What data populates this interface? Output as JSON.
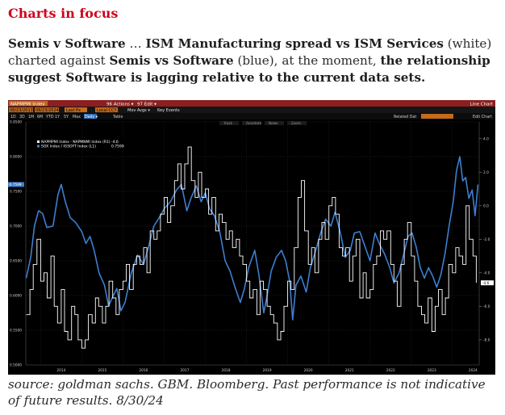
{
  "heading": "Charts in focus",
  "intro": {
    "p1_bold": "Semis v Software",
    "p2": " … ",
    "p3_bold": "ISM Manufacturing spread vs ISM Services",
    "p4": " (white) charted against ",
    "p5_bold": "Semis vs Software",
    "p6": " (blue), at the moment, ",
    "p7_bold": "the relationship suggest Software is lagging relative to the current data sets."
  },
  "terminal": {
    "ticker": "NAPMPMI Index",
    "actions_menu": "96 Actions ▾",
    "edit_menu": "97 Edit ▾",
    "chart_type": "Line Chart",
    "start_date": "08/23/2013",
    "end_date": "08/23/2024",
    "period": "Last Px",
    "currency": "Local CCY",
    "mov_avgs": "Mov Avgs ▾",
    "key_events": "Key Events",
    "ranges": [
      "1D",
      "3D",
      "1M",
      "6M",
      "YTD",
      "1Y",
      "5Y",
      "Max"
    ],
    "frequency": "Daily ▾",
    "table_btn": "Table",
    "related_dat": "Related Dat",
    "edit_chart": "Edit Chart",
    "tools": [
      "Track",
      "Annotate",
      "News",
      "Zoom"
    ]
  },
  "chart_data": {
    "type": "line",
    "colors": {
      "ism_spread": "#ffffff",
      "semis_vs_software": "#3d7fd0",
      "background": "#000000",
      "grid": "#262626"
    },
    "legend": {
      "position": "top-left",
      "entries": [
        {
          "name": "NAPMPMI Index - NAPMNMI Index (R1)",
          "last": "-4.6"
        },
        {
          "name": "SOX Index / IGSOFT Index (L1)",
          "last": "0.7599"
        }
      ]
    },
    "x_ticks": [
      "2014",
      "2015",
      "2016",
      "2017",
      "2018",
      "2019",
      "2020",
      "2021",
      "2022",
      "2023",
      "2024"
    ],
    "x_range": [
      2013.64,
      2024.65
    ],
    "left_axis": {
      "ticks": [
        "0.8500",
        "0.8000",
        "0.7500",
        "0.7000",
        "0.6500",
        "0.6000",
        "0.5500",
        "0.5000"
      ],
      "range": [
        0.5,
        0.85
      ]
    },
    "right_axis": {
      "ticks": [
        "4.0",
        "2.0",
        "0.0",
        "-2.0",
        "-4.0",
        "-6.0",
        "-8.0"
      ],
      "range": [
        -9.5,
        5.0
      ]
    },
    "last_labels": {
      "left": "0.7599",
      "right": "-4.6"
    },
    "ism_spread_series": [
      [
        2013.65,
        -6.5
      ],
      [
        2013.74,
        -5.0
      ],
      [
        2013.82,
        -3.5
      ],
      [
        2013.91,
        -2.0
      ],
      [
        2014.0,
        -4.5
      ],
      [
        2014.08,
        -4.0
      ],
      [
        2014.16,
        -5.5
      ],
      [
        2014.25,
        -3.0
      ],
      [
        2014.33,
        -6.0
      ],
      [
        2014.41,
        -7.0
      ],
      [
        2014.5,
        -5.0
      ],
      [
        2014.58,
        -7.5
      ],
      [
        2014.66,
        -8.0
      ],
      [
        2014.75,
        -6.0
      ],
      [
        2014.83,
        -6.5
      ],
      [
        2014.91,
        -8.0
      ],
      [
        2015.0,
        -8.5
      ],
      [
        2015.08,
        -8.0
      ],
      [
        2015.16,
        -6.5
      ],
      [
        2015.25,
        -7.0
      ],
      [
        2015.33,
        -5.5
      ],
      [
        2015.41,
        -6.0
      ],
      [
        2015.5,
        -7.0
      ],
      [
        2015.58,
        -6.0
      ],
      [
        2015.66,
        -4.5
      ],
      [
        2015.75,
        -5.5
      ],
      [
        2015.83,
        -6.5
      ],
      [
        2015.91,
        -5.0
      ],
      [
        2016.0,
        -4.5
      ],
      [
        2016.08,
        -3.5
      ],
      [
        2016.16,
        -5.0
      ],
      [
        2016.25,
        -3.5
      ],
      [
        2016.33,
        -3.0
      ],
      [
        2016.41,
        -3.5
      ],
      [
        2016.5,
        -2.5
      ],
      [
        2016.58,
        -4.0
      ],
      [
        2016.66,
        -1.5
      ],
      [
        2016.75,
        -2.0
      ],
      [
        2016.83,
        -1.5
      ],
      [
        2016.91,
        -0.5
      ],
      [
        2017.0,
        0.5
      ],
      [
        2017.08,
        -1.0
      ],
      [
        2017.16,
        0.0
      ],
      [
        2017.25,
        1.5
      ],
      [
        2017.33,
        2.5
      ],
      [
        2017.41,
        1.0
      ],
      [
        2017.5,
        2.5
      ],
      [
        2017.58,
        3.5
      ],
      [
        2017.66,
        1.5
      ],
      [
        2017.75,
        0.5
      ],
      [
        2017.83,
        2.0
      ],
      [
        2017.91,
        0.5
      ],
      [
        2018.0,
        1.0
      ],
      [
        2018.08,
        -0.5
      ],
      [
        2018.16,
        0.5
      ],
      [
        2018.25,
        -1.5
      ],
      [
        2018.33,
        -0.5
      ],
      [
        2018.41,
        -1.0
      ],
      [
        2018.5,
        -2.0
      ],
      [
        2018.58,
        -1.5
      ],
      [
        2018.66,
        -2.5
      ],
      [
        2018.75,
        -2.0
      ],
      [
        2018.83,
        -3.0
      ],
      [
        2018.91,
        -3.5
      ],
      [
        2019.0,
        -4.5
      ],
      [
        2019.08,
        -5.5
      ],
      [
        2019.16,
        -5.0
      ],
      [
        2019.25,
        -6.5
      ],
      [
        2019.33,
        -4.5
      ],
      [
        2019.41,
        -5.0
      ],
      [
        2019.5,
        -6.0
      ],
      [
        2019.58,
        -6.5
      ],
      [
        2019.66,
        -7.0
      ],
      [
        2019.75,
        -8.0
      ],
      [
        2019.83,
        -7.5
      ],
      [
        2019.91,
        -6.0
      ],
      [
        2020.0,
        -4.5
      ],
      [
        2020.08,
        -5.0
      ],
      [
        2020.16,
        -2.5
      ],
      [
        2020.25,
        0.5
      ],
      [
        2020.33,
        1.5
      ],
      [
        2020.41,
        -1.5
      ],
      [
        2020.5,
        -3.5
      ],
      [
        2020.58,
        -2.5
      ],
      [
        2020.66,
        -4.0
      ],
      [
        2020.75,
        -2.0
      ],
      [
        2020.83,
        -1.0
      ],
      [
        2020.91,
        -2.0
      ],
      [
        2021.0,
        0.0
      ],
      [
        2021.08,
        0.5
      ],
      [
        2021.16,
        -0.5
      ],
      [
        2021.25,
        -2.5
      ],
      [
        2021.33,
        -3.0
      ],
      [
        2021.41,
        -2.5
      ],
      [
        2021.5,
        -4.5
      ],
      [
        2021.58,
        -3.0
      ],
      [
        2021.66,
        -2.0
      ],
      [
        2021.75,
        -5.5
      ],
      [
        2021.83,
        -4.0
      ],
      [
        2021.91,
        -5.5
      ],
      [
        2022.0,
        -5.0
      ],
      [
        2022.08,
        -3.5
      ],
      [
        2022.16,
        -3.0
      ],
      [
        2022.25,
        -1.5
      ],
      [
        2022.33,
        -2.0
      ],
      [
        2022.41,
        -1.5
      ],
      [
        2022.5,
        -3.5
      ],
      [
        2022.58,
        -4.5
      ],
      [
        2022.66,
        -6.0
      ],
      [
        2022.75,
        -3.5
      ],
      [
        2022.83,
        -2.0
      ],
      [
        2022.91,
        -1.0
      ],
      [
        2023.0,
        -3.0
      ],
      [
        2023.08,
        -4.5
      ],
      [
        2023.16,
        -6.0
      ],
      [
        2023.25,
        -6.5
      ],
      [
        2023.33,
        -7.0
      ],
      [
        2023.41,
        -5.5
      ],
      [
        2023.5,
        -7.5
      ],
      [
        2023.58,
        -6.0
      ],
      [
        2023.66,
        -5.0
      ],
      [
        2023.75,
        -6.5
      ],
      [
        2023.83,
        -5.5
      ],
      [
        2023.91,
        -3.5
      ],
      [
        2024.0,
        -4.0
      ],
      [
        2024.08,
        -2.5
      ],
      [
        2024.16,
        -3.0
      ],
      [
        2024.25,
        -3.5
      ],
      [
        2024.33,
        0.0
      ],
      [
        2024.41,
        -2.0
      ],
      [
        2024.5,
        -3.0
      ],
      [
        2024.58,
        -4.6
      ]
    ],
    "semis_vs_software_series": [
      [
        2013.65,
        0.625
      ],
      [
        2013.76,
        0.655
      ],
      [
        2013.85,
        0.7
      ],
      [
        2013.95,
        0.722
      ],
      [
        2014.05,
        0.718
      ],
      [
        2014.15,
        0.698
      ],
      [
        2014.3,
        0.7
      ],
      [
        2014.42,
        0.745
      ],
      [
        2014.5,
        0.76
      ],
      [
        2014.6,
        0.735
      ],
      [
        2014.72,
        0.712
      ],
      [
        2014.85,
        0.705
      ],
      [
        2015.0,
        0.692
      ],
      [
        2015.1,
        0.675
      ],
      [
        2015.2,
        0.685
      ],
      [
        2015.3,
        0.665
      ],
      [
        2015.42,
        0.632
      ],
      [
        2015.55,
        0.615
      ],
      [
        2015.65,
        0.585
      ],
      [
        2015.75,
        0.598
      ],
      [
        2015.85,
        0.61
      ],
      [
        2015.95,
        0.578
      ],
      [
        2016.05,
        0.59
      ],
      [
        2016.2,
        0.632
      ],
      [
        2016.35,
        0.658
      ],
      [
        2016.5,
        0.645
      ],
      [
        2016.62,
        0.67
      ],
      [
        2016.75,
        0.7
      ],
      [
        2016.88,
        0.712
      ],
      [
        2017.0,
        0.725
      ],
      [
        2017.15,
        0.735
      ],
      [
        2017.3,
        0.752
      ],
      [
        2017.42,
        0.76
      ],
      [
        2017.55,
        0.722
      ],
      [
        2017.65,
        0.74
      ],
      [
        2017.78,
        0.758
      ],
      [
        2017.9,
        0.735
      ],
      [
        2018.0,
        0.748
      ],
      [
        2018.1,
        0.725
      ],
      [
        2018.22,
        0.715
      ],
      [
        2018.35,
        0.692
      ],
      [
        2018.48,
        0.65
      ],
      [
        2018.6,
        0.635
      ],
      [
        2018.72,
        0.612
      ],
      [
        2018.85,
        0.59
      ],
      [
        2018.95,
        0.61
      ],
      [
        2019.05,
        0.64
      ],
      [
        2019.2,
        0.665
      ],
      [
        2019.3,
        0.63
      ],
      [
        2019.42,
        0.575
      ],
      [
        2019.5,
        0.6
      ],
      [
        2019.6,
        0.635
      ],
      [
        2019.72,
        0.655
      ],
      [
        2019.85,
        0.665
      ],
      [
        2019.95,
        0.65
      ],
      [
        2020.05,
        0.62
      ],
      [
        2020.12,
        0.565
      ],
      [
        2020.2,
        0.615
      ],
      [
        2020.32,
        0.628
      ],
      [
        2020.45,
        0.605
      ],
      [
        2020.55,
        0.64
      ],
      [
        2020.68,
        0.665
      ],
      [
        2020.8,
        0.69
      ],
      [
        2020.92,
        0.71
      ],
      [
        2021.05,
        0.7
      ],
      [
        2021.15,
        0.72
      ],
      [
        2021.28,
        0.69
      ],
      [
        2021.4,
        0.655
      ],
      [
        2021.52,
        0.665
      ],
      [
        2021.62,
        0.69
      ],
      [
        2021.75,
        0.692
      ],
      [
        2021.88,
        0.67
      ],
      [
        2022.0,
        0.65
      ],
      [
        2022.12,
        0.69
      ],
      [
        2022.22,
        0.675
      ],
      [
        2022.35,
        0.66
      ],
      [
        2022.48,
        0.64
      ],
      [
        2022.58,
        0.618
      ],
      [
        2022.7,
        0.632
      ],
      [
        2022.82,
        0.66
      ],
      [
        2022.92,
        0.685
      ],
      [
        2023.02,
        0.69
      ],
      [
        2023.12,
        0.67
      ],
      [
        2023.22,
        0.64
      ],
      [
        2023.32,
        0.625
      ],
      [
        2023.42,
        0.64
      ],
      [
        2023.52,
        0.628
      ],
      [
        2023.62,
        0.612
      ],
      [
        2023.72,
        0.63
      ],
      [
        2023.82,
        0.66
      ],
      [
        2023.92,
        0.7
      ],
      [
        2024.02,
        0.735
      ],
      [
        2024.1,
        0.78
      ],
      [
        2024.18,
        0.8
      ],
      [
        2024.25,
        0.765
      ],
      [
        2024.32,
        0.77
      ],
      [
        2024.4,
        0.74
      ],
      [
        2024.48,
        0.752
      ],
      [
        2024.55,
        0.715
      ],
      [
        2024.62,
        0.7599
      ]
    ]
  },
  "source": "source: goldman sachs. GBM. Bloomberg. Past performance is not indicative of future results. 8/30/24"
}
